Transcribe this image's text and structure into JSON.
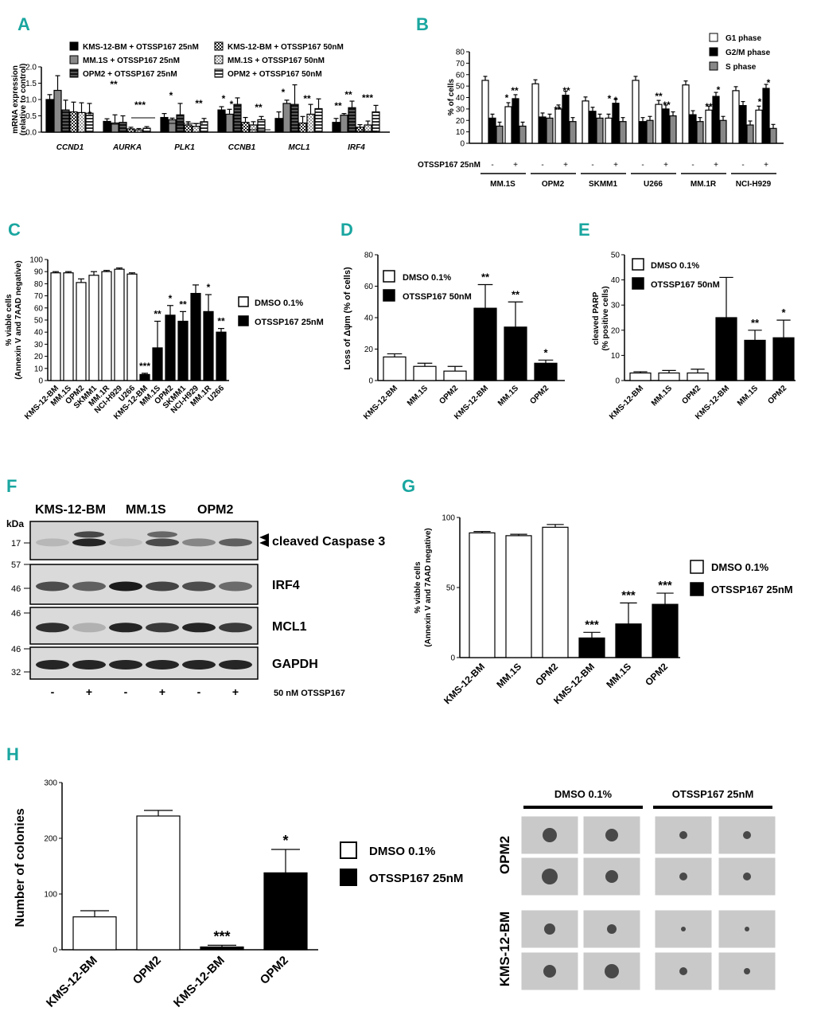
{
  "panels": {
    "A": {
      "letter": "A",
      "type": "bar",
      "ylabel": "mRNA expression\n(relative to control)",
      "ylim": [
        0,
        2.0
      ],
      "yticks": [
        "0.0",
        "0.5",
        "1.0",
        "1.5",
        "2.0"
      ],
      "categories": [
        "CCND1",
        "AURKA",
        "PLK1",
        "CCNB1",
        "MCL1",
        "IRF4"
      ],
      "series": [
        {
          "name": "KMS-12-BM + OTSSP167 25nM",
          "fill": "#000000",
          "pattern": "solid",
          "values": [
            1.0,
            0.33,
            0.45,
            0.68,
            0.42,
            0.3
          ],
          "err": [
            0.15,
            0.08,
            0.12,
            0.1,
            0.2,
            0.12
          ]
        },
        {
          "name": "MM.1S + OTSSP167 25nM",
          "fill": "#888888",
          "pattern": "solid",
          "values": [
            1.28,
            0.28,
            0.38,
            0.55,
            0.88,
            0.52
          ],
          "err": [
            0.45,
            0.25,
            0.05,
            0.15,
            0.1,
            0.05
          ]
        },
        {
          "name": "OPM2 + OTSSP167 25nM",
          "fill": "#555555",
          "pattern": "hstripe",
          "values": [
            0.68,
            0.3,
            0.53,
            0.85,
            0.85,
            0.75
          ],
          "err": [
            0.3,
            0.2,
            0.35,
            0.2,
            0.6,
            0.2
          ]
        },
        {
          "name": "KMS-12-BM + OTSSP167 50nM",
          "fill": "#555555",
          "pattern": "check",
          "values": [
            0.62,
            0.1,
            0.22,
            0.3,
            0.28,
            0.15
          ],
          "err": [
            0.3,
            0.05,
            0.1,
            0.15,
            0.2,
            0.08
          ]
        },
        {
          "name": "MM.1S + OTSSP167 50nM",
          "fill": "#bbbbbb",
          "pattern": "check",
          "values": [
            0.6,
            0.07,
            0.18,
            0.22,
            0.55,
            0.22
          ],
          "err": [
            0.3,
            0.04,
            0.08,
            0.1,
            0.3,
            0.12
          ]
        },
        {
          "name": "OPM2 + OTSSP167 50nM",
          "fill": "#ffffff",
          "pattern": "hstripe",
          "values": [
            0.58,
            0.12,
            0.32,
            0.38,
            0.72,
            0.62
          ],
          "err": [
            0.3,
            0.05,
            0.1,
            0.1,
            0.3,
            0.2
          ]
        }
      ],
      "sig": [
        {
          "cat": 0,
          "text": "*"
        },
        {
          "cat": 1,
          "text": "**"
        },
        {
          "cat": 1,
          "text": "***"
        },
        {
          "cat": 2,
          "text": "*"
        },
        {
          "cat": 2,
          "text": "**"
        },
        {
          "cat": 3,
          "text": "*"
        },
        {
          "cat": 3,
          "text": "*"
        },
        {
          "cat": 3,
          "text": "**"
        },
        {
          "cat": 4,
          "text": "*"
        },
        {
          "cat": 4,
          "text": "**"
        },
        {
          "cat": 5,
          "text": "**"
        },
        {
          "cat": 5,
          "text": "**"
        },
        {
          "cat": 5,
          "text": "***"
        }
      ]
    },
    "B": {
      "letter": "B",
      "type": "bar",
      "ylabel": "% of cells",
      "ylim": [
        0,
        80
      ],
      "yticks": [
        "0",
        "10",
        "20",
        "30",
        "40",
        "50",
        "60",
        "70",
        "80"
      ],
      "xrow_label": "OTSSP167 25nM",
      "xrow_signs": [
        "-",
        "+"
      ],
      "groups": [
        "MM.1S",
        "OPM2",
        "SKMM1",
        "U266",
        "MM.1R",
        "NCI-H929"
      ],
      "legend": [
        "G1 phase",
        "G2/M phase",
        "S phase"
      ],
      "colors": [
        "#ffffff",
        "#000000",
        "#888888"
      ],
      "values": {
        "ctrl": [
          [
            55,
            22,
            15
          ],
          [
            52,
            23,
            22
          ],
          [
            37,
            28,
            22
          ],
          [
            55,
            19,
            20
          ],
          [
            51,
            25,
            19
          ],
          [
            46,
            33,
            16
          ]
        ],
        "treated": [
          [
            32,
            39,
            15
          ],
          [
            30,
            42,
            19
          ],
          [
            22,
            35,
            19
          ],
          [
            34,
            30,
            24
          ],
          [
            29,
            41,
            20
          ],
          [
            29,
            48,
            13
          ]
        ]
      },
      "sig": [
        "*",
        "**",
        "**",
        "**",
        "*",
        "*",
        "**",
        "**",
        "**",
        "*",
        "*",
        "*"
      ]
    },
    "C": {
      "letter": "C",
      "type": "bar",
      "ylabel": "% viable cells\n(Annexin V and 7AAD negative)",
      "ylim": [
        0,
        100
      ],
      "yticks": [
        "0",
        "10",
        "20",
        "30",
        "40",
        "50",
        "60",
        "70",
        "80",
        "90",
        "100"
      ],
      "categories": [
        "KMS-12-BM",
        "MM.1S",
        "OPM2",
        "SKMM1",
        "MM.1R",
        "NCI-H929",
        "U266",
        "KMS-12-BM",
        "MM.1S",
        "OPM2",
        "SKMM1",
        "NCI-H929",
        "MM.1R",
        "U266"
      ],
      "values": [
        89,
        89,
        81,
        87,
        90,
        92,
        88,
        5,
        27,
        54,
        49,
        72,
        57,
        40
      ],
      "err": [
        1,
        1,
        3,
        3,
        1,
        1,
        1,
        1,
        22,
        8,
        8,
        7,
        14,
        3
      ],
      "treated": [
        false,
        false,
        false,
        false,
        false,
        false,
        false,
        true,
        true,
        true,
        true,
        true,
        true,
        true
      ],
      "sig": [
        "",
        "",
        "",
        "",
        "",
        "",
        "",
        "***",
        "**",
        "*",
        "**",
        "",
        "*",
        "**"
      ],
      "legend": [
        "DMSO 0.1%",
        "OTSSP167 25nM"
      ]
    },
    "D": {
      "letter": "D",
      "type": "bar",
      "ylabel": "Loss of Δψm (% of cells)",
      "ylim": [
        0,
        80
      ],
      "yticks": [
        "0",
        "20",
        "40",
        "60",
        "80"
      ],
      "categories": [
        "KMS-12-BM",
        "MM.1S",
        "OPM2",
        "KMS-12-BM",
        "MM.1S",
        "OPM2"
      ],
      "values": [
        15,
        9,
        6,
        46,
        34,
        11
      ],
      "err": [
        2,
        2,
        3,
        15,
        16,
        2
      ],
      "treated": [
        false,
        false,
        false,
        true,
        true,
        true
      ],
      "sig": [
        "",
        "",
        "",
        "**",
        "**",
        "*"
      ],
      "legend": [
        "DMSO 0.1%",
        "OTSSP167 50nM"
      ]
    },
    "E": {
      "letter": "E",
      "type": "bar",
      "ylabel": "cleaved PARP\n(% positive cells)",
      "ylim": [
        0,
        50
      ],
      "yticks": [
        "0",
        "10",
        "20",
        "30",
        "40",
        "50"
      ],
      "categories": [
        "KMS-12-BM",
        "MM.1S",
        "OPM2",
        "KMS-12-BM",
        "MM.1S",
        "OPM2"
      ],
      "values": [
        3,
        3,
        3,
        25,
        16,
        17
      ],
      "err": [
        0.5,
        1,
        1.5,
        16,
        4,
        7
      ],
      "treated": [
        false,
        false,
        false,
        true,
        true,
        true
      ],
      "sig": [
        "",
        "",
        "",
        "",
        "**",
        "*"
      ],
      "legend": [
        "DMSO 0.1%",
        "OTSSP167 50nM"
      ]
    },
    "F": {
      "letter": "F",
      "lanes": [
        "KMS-12-BM",
        "MM.1S",
        "OPM2"
      ],
      "kda": "kDa",
      "markers": [
        "17",
        "57",
        "46",
        "46",
        "46",
        "32"
      ],
      "blots": [
        "cleaved Caspase 3",
        "IRF4",
        "MCL1",
        "GAPDH"
      ],
      "signs": [
        "-",
        "+",
        "-",
        "+",
        "-",
        "+"
      ],
      "treatment": "50 nM  OTSSP167"
    },
    "G": {
      "letter": "G",
      "type": "bar",
      "ylabel": "% viable cells\n(Annexin V and 7AAD negative)",
      "ylim": [
        0,
        100
      ],
      "yticks": [
        "0",
        "50",
        "100"
      ],
      "categories": [
        "KMS-12-BM",
        "MM.1S",
        "OPM2",
        "KMS-12-BM",
        "MM.1S",
        "OPM2"
      ],
      "values": [
        89,
        87,
        93,
        14,
        24,
        38
      ],
      "err": [
        1,
        1,
        2,
        4,
        15,
        8
      ],
      "treated": [
        false,
        false,
        false,
        true,
        true,
        true
      ],
      "sig": [
        "",
        "",
        "",
        "***",
        "***",
        "***"
      ],
      "legend": [
        "DMSO 0.1%",
        "OTSSP167 25nM"
      ]
    },
    "H": {
      "letter": "H",
      "type": "bar",
      "ylabel": "Number of colonies",
      "ylim": [
        0,
        300
      ],
      "yticks": [
        "0",
        "100",
        "200",
        "300"
      ],
      "categories": [
        "KMS-12-BM",
        "OPM2",
        "KMS-12-BM",
        "OPM2"
      ],
      "values": [
        59,
        240,
        5,
        138
      ],
      "err": [
        11,
        10,
        3,
        42
      ],
      "treated": [
        false,
        false,
        true,
        true
      ],
      "sig": [
        "",
        "",
        "***",
        "*"
      ],
      "legend": [
        "DMSO 0.1%",
        "OTSSP167 25nM"
      ],
      "photo_headers": [
        "DMSO 0.1%",
        "OTSSP167 25nM"
      ],
      "photo_rows": [
        "OPM2",
        "KMS-12-BM"
      ]
    }
  }
}
